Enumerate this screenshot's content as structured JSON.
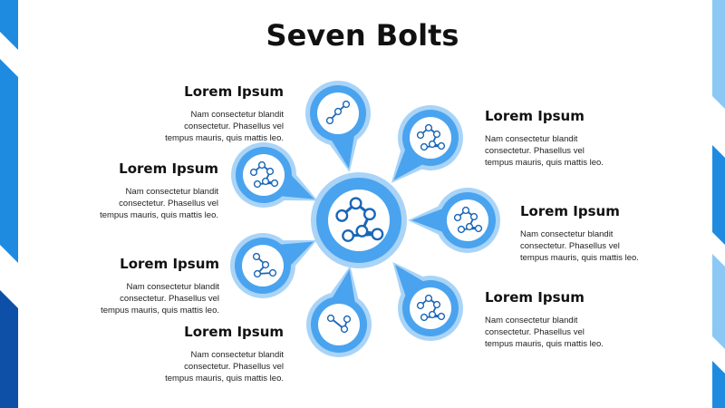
{
  "title": "Seven Bolts",
  "colors": {
    "ring": "#a9d4f7",
    "fill": "#4aa3ee",
    "icon": "#1a66b8",
    "edge_dark": "#0e4fa8",
    "edge_mid": "#1f8be0",
    "edge_light": "#8cc8f5"
  },
  "center_icon": "molecule-icon",
  "items": [
    {
      "heading": "Lorem Ipsum",
      "body": [
        "Nam consectetur blandit",
        "consectetur. Phasellus vel",
        "tempus mauris, quis mattis leo."
      ],
      "icon": "molecule-icon"
    },
    {
      "heading": "Lorem Ipsum",
      "body": [
        "Nam consectetur blandit",
        "consectetur. Phasellus vel",
        "tempus mauris, quis mattis leo."
      ],
      "icon": "molecule-icon"
    },
    {
      "heading": "Lorem Ipsum",
      "body": [
        "Nam consectetur blandit",
        "consectetur. Phasellus vel",
        "tempus mauris, quis mattis leo."
      ],
      "icon": "molecule-icon"
    },
    {
      "heading": "Lorem Ipsum",
      "body": [
        "Nam consectetur blandit",
        "consectetur. Phasellus vel",
        "tempus mauris, quis mattis leo."
      ],
      "icon": "molecule-icon"
    },
    {
      "heading": "Lorem Ipsum",
      "body": [
        "Nam consectetur blandit",
        "consectetur. Phasellus vel",
        "tempus mauris, quis mattis leo."
      ],
      "icon": "molecule-icon"
    },
    {
      "heading": "Lorem Ipsum",
      "body": [
        "Nam consectetur blandit",
        "consectetur. Phasellus vel",
        "tempus mauris, quis mattis leo."
      ],
      "icon": "molecule-icon"
    },
    {
      "heading": "Lorem Ipsum",
      "body": [
        "Nam consectetur blandit",
        "consectetur. Phasellus vel",
        "tempus mauris, quis mattis leo."
      ],
      "icon": "molecule-icon"
    }
  ]
}
